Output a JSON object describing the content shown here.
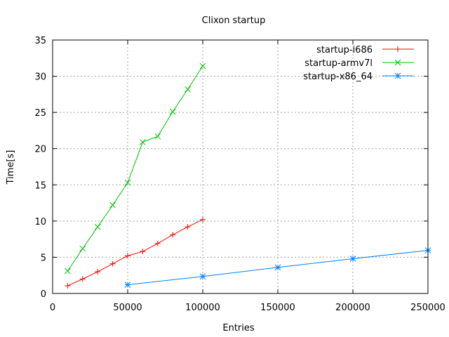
{
  "chart_data": {
    "type": "line",
    "title": "Clixon startup",
    "xlabel": "Entries",
    "ylabel": "Time[s]",
    "xlim": [
      0,
      250000
    ],
    "ylim": [
      0,
      35
    ],
    "xticks": [
      0,
      50000,
      100000,
      150000,
      200000,
      250000
    ],
    "yticks": [
      0,
      5,
      10,
      15,
      20,
      25,
      30,
      35
    ],
    "grid": true,
    "legend_position": "top-right",
    "series": [
      {
        "name": "startup-i686",
        "color": "#ff0000",
        "marker": "plus",
        "x": [
          10000,
          20000,
          30000,
          40000,
          50000,
          60000,
          70000,
          80000,
          90000,
          100000
        ],
        "y": [
          1.06,
          2.0,
          3.0,
          4.1,
          5.2,
          5.8,
          6.9,
          8.1,
          9.2,
          10.2
        ]
      },
      {
        "name": "startup-armv7l",
        "color": "#00c000",
        "marker": "cross",
        "x": [
          10000,
          20000,
          30000,
          40000,
          50000,
          60000,
          70000,
          80000,
          90000,
          100000
        ],
        "y": [
          3.1,
          6.2,
          9.2,
          12.2,
          15.3,
          20.9,
          21.7,
          25.1,
          28.2,
          31.4
        ]
      },
      {
        "name": "startup-x86_64",
        "color": "#0080ff",
        "marker": "star",
        "x": [
          50000,
          100000,
          150000,
          200000,
          250000
        ],
        "y": [
          1.2,
          2.35,
          3.6,
          4.8,
          5.95
        ]
      }
    ]
  }
}
